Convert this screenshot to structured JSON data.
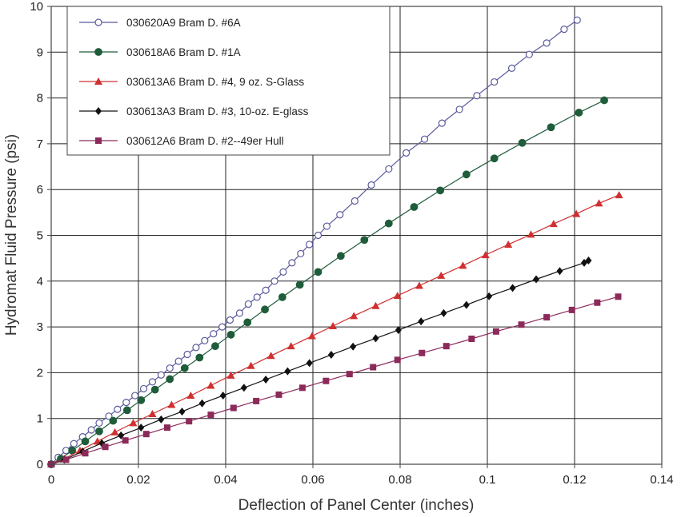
{
  "chart_data": {
    "type": "line",
    "title": "",
    "xlabel": "Deflection of Panel Center (inches)",
    "ylabel": "Hydromat Fluid Pressure (psi)",
    "xlim": [
      0,
      0.14
    ],
    "ylim": [
      0,
      10
    ],
    "x_ticks": [
      0,
      0.02,
      0.04,
      0.06,
      0.08,
      0.1,
      0.12,
      0.14
    ],
    "x_tick_labels": [
      "0",
      "0.02",
      "0.04",
      "0.06",
      "0.08",
      "0.1",
      "0.12",
      "0.14"
    ],
    "y_ticks": [
      0,
      1,
      2,
      3,
      4,
      5,
      6,
      7,
      8,
      9,
      10
    ],
    "y_tick_labels": [
      "0",
      "1",
      "2",
      "3",
      "4",
      "5",
      "6",
      "7",
      "8",
      "9",
      "10"
    ],
    "grid": true,
    "legend_position": "top-left",
    "series": [
      {
        "name": "030620A9  Bram D. #6A",
        "color": "#5a5a9c",
        "marker": "circle-open",
        "points": [
          [
            0,
            0
          ],
          [
            0.0016,
            0.15
          ],
          [
            0.0034,
            0.3
          ],
          [
            0.0052,
            0.45
          ],
          [
            0.0072,
            0.6
          ],
          [
            0.0092,
            0.75
          ],
          [
            0.011,
            0.9
          ],
          [
            0.0132,
            1.05
          ],
          [
            0.0152,
            1.2
          ],
          [
            0.0172,
            1.35
          ],
          [
            0.0192,
            1.5
          ],
          [
            0.0212,
            1.65
          ],
          [
            0.0232,
            1.8
          ],
          [
            0.0252,
            1.95
          ],
          [
            0.0272,
            2.1
          ],
          [
            0.0292,
            2.25
          ],
          [
            0.0312,
            2.4
          ],
          [
            0.0332,
            2.55
          ],
          [
            0.0352,
            2.7
          ],
          [
            0.0372,
            2.85
          ],
          [
            0.0392,
            3.0
          ],
          [
            0.041,
            3.15
          ],
          [
            0.0432,
            3.3
          ],
          [
            0.0452,
            3.5
          ],
          [
            0.0472,
            3.65
          ],
          [
            0.0492,
            3.8
          ],
          [
            0.0512,
            4.0
          ],
          [
            0.0532,
            4.2
          ],
          [
            0.0552,
            4.4
          ],
          [
            0.0572,
            4.6
          ],
          [
            0.0592,
            4.8
          ],
          [
            0.0612,
            5.0
          ],
          [
            0.0632,
            5.2
          ],
          [
            0.0662,
            5.45
          ],
          [
            0.0696,
            5.75
          ],
          [
            0.0734,
            6.1
          ],
          [
            0.0774,
            6.45
          ],
          [
            0.0814,
            6.8
          ],
          [
            0.0856,
            7.1
          ],
          [
            0.0896,
            7.45
          ],
          [
            0.0936,
            7.75
          ],
          [
            0.0976,
            8.05
          ],
          [
            0.1016,
            8.35
          ],
          [
            0.1056,
            8.65
          ],
          [
            0.1096,
            8.95
          ],
          [
            0.1136,
            9.2
          ],
          [
            0.1176,
            9.5
          ],
          [
            0.1206,
            9.7
          ]
        ]
      },
      {
        "name": "030618A6  Bram D. #1A",
        "color": "#1f5c3a",
        "marker": "circle-filled",
        "points": [
          [
            0,
            0
          ],
          [
            0.0022,
            0.12
          ],
          [
            0.0048,
            0.3
          ],
          [
            0.0078,
            0.5
          ],
          [
            0.011,
            0.72
          ],
          [
            0.0142,
            0.95
          ],
          [
            0.0174,
            1.18
          ],
          [
            0.0206,
            1.4
          ],
          [
            0.0238,
            1.63
          ],
          [
            0.0272,
            1.86
          ],
          [
            0.0306,
            2.1
          ],
          [
            0.034,
            2.33
          ],
          [
            0.0376,
            2.58
          ],
          [
            0.0412,
            2.83
          ],
          [
            0.045,
            3.1
          ],
          [
            0.049,
            3.38
          ],
          [
            0.053,
            3.65
          ],
          [
            0.057,
            3.92
          ],
          [
            0.0612,
            4.2
          ],
          [
            0.0664,
            4.55
          ],
          [
            0.0718,
            4.9
          ],
          [
            0.0774,
            5.26
          ],
          [
            0.0832,
            5.62
          ],
          [
            0.0892,
            5.98
          ],
          [
            0.0952,
            6.33
          ],
          [
            0.1016,
            6.68
          ],
          [
            0.108,
            7.02
          ],
          [
            0.1146,
            7.36
          ],
          [
            0.121,
            7.68
          ],
          [
            0.1268,
            7.95
          ]
        ]
      },
      {
        "name": "030613A6  Bram D. #4,  9 oz. S-Glass",
        "color": "#d03030",
        "marker": "triangle",
        "points": [
          [
            0,
            0
          ],
          [
            0.003,
            0.12
          ],
          [
            0.0066,
            0.3
          ],
          [
            0.0106,
            0.5
          ],
          [
            0.0146,
            0.7
          ],
          [
            0.0188,
            0.9
          ],
          [
            0.0232,
            1.1
          ],
          [
            0.0276,
            1.3
          ],
          [
            0.032,
            1.5
          ],
          [
            0.0366,
            1.72
          ],
          [
            0.0412,
            1.94
          ],
          [
            0.0458,
            2.15
          ],
          [
            0.0504,
            2.37
          ],
          [
            0.055,
            2.58
          ],
          [
            0.0598,
            2.8
          ],
          [
            0.0646,
            3.02
          ],
          [
            0.0694,
            3.24
          ],
          [
            0.0744,
            3.46
          ],
          [
            0.0794,
            3.68
          ],
          [
            0.0844,
            3.9
          ],
          [
            0.0894,
            4.12
          ],
          [
            0.0944,
            4.34
          ],
          [
            0.0996,
            4.57
          ],
          [
            0.1048,
            4.8
          ],
          [
            0.11,
            5.02
          ],
          [
            0.1152,
            5.25
          ],
          [
            0.1204,
            5.47
          ],
          [
            0.1256,
            5.7
          ],
          [
            0.1302,
            5.88
          ]
        ]
      },
      {
        "name": "030613A3  Bram D. #3,  10-oz. E-glass",
        "color": "#111111",
        "marker": "diamond",
        "points": [
          [
            0,
            0
          ],
          [
            0.003,
            0.1
          ],
          [
            0.0072,
            0.28
          ],
          [
            0.0116,
            0.46
          ],
          [
            0.016,
            0.63
          ],
          [
            0.0206,
            0.8
          ],
          [
            0.0252,
            0.98
          ],
          [
            0.03,
            1.15
          ],
          [
            0.0346,
            1.33
          ],
          [
            0.0394,
            1.5
          ],
          [
            0.0442,
            1.67
          ],
          [
            0.0492,
            1.85
          ],
          [
            0.0542,
            2.03
          ],
          [
            0.0592,
            2.21
          ],
          [
            0.0642,
            2.39
          ],
          [
            0.0692,
            2.57
          ],
          [
            0.0744,
            2.75
          ],
          [
            0.0796,
            2.93
          ],
          [
            0.0848,
            3.12
          ],
          [
            0.09,
            3.3
          ],
          [
            0.0952,
            3.48
          ],
          [
            0.1004,
            3.67
          ],
          [
            0.1058,
            3.85
          ],
          [
            0.1112,
            4.04
          ],
          [
            0.1166,
            4.22
          ],
          [
            0.1222,
            4.4
          ],
          [
            0.1232,
            4.45
          ]
        ]
      },
      {
        "name": "030612A6  Bram D. #2--49er Hull",
        "color": "#8c2a5a",
        "marker": "square",
        "points": [
          [
            0,
            0
          ],
          [
            0.0034,
            0.1
          ],
          [
            0.0078,
            0.24
          ],
          [
            0.0124,
            0.38
          ],
          [
            0.017,
            0.52
          ],
          [
            0.0218,
            0.66
          ],
          [
            0.0266,
            0.8
          ],
          [
            0.0316,
            0.94
          ],
          [
            0.0366,
            1.08
          ],
          [
            0.0418,
            1.23
          ],
          [
            0.047,
            1.38
          ],
          [
            0.0522,
            1.52
          ],
          [
            0.0576,
            1.67
          ],
          [
            0.063,
            1.82
          ],
          [
            0.0684,
            1.97
          ],
          [
            0.0738,
            2.12
          ],
          [
            0.0794,
            2.28
          ],
          [
            0.085,
            2.43
          ],
          [
            0.0906,
            2.58
          ],
          [
            0.0964,
            2.74
          ],
          [
            0.102,
            2.9
          ],
          [
            0.1078,
            3.05
          ],
          [
            0.1136,
            3.21
          ],
          [
            0.1194,
            3.37
          ],
          [
            0.1252,
            3.53
          ],
          [
            0.13,
            3.66
          ]
        ]
      }
    ]
  }
}
